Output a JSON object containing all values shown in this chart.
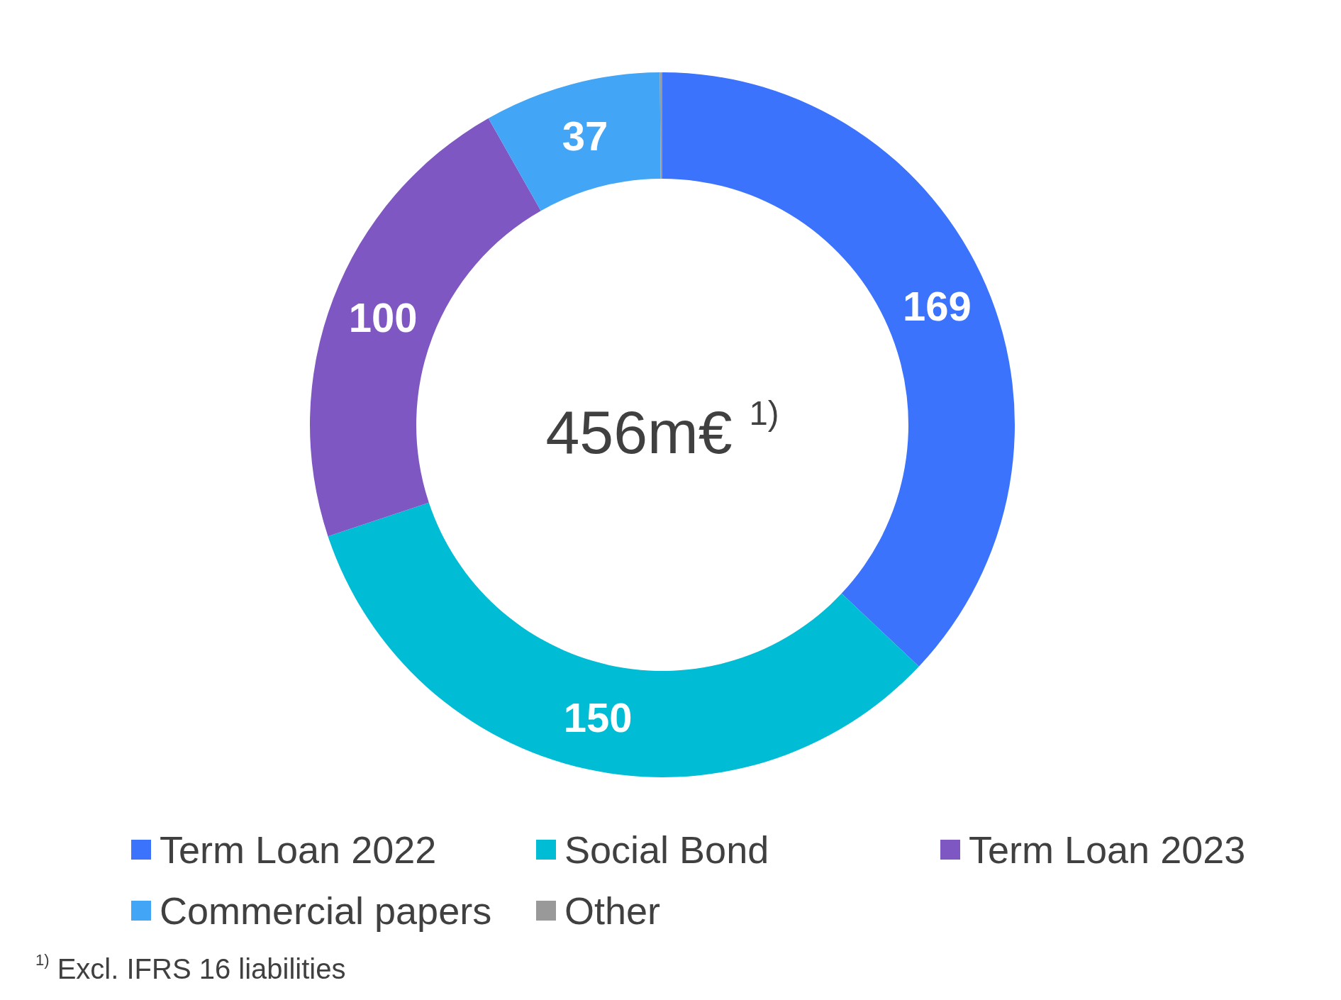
{
  "chart_data": {
    "type": "donut",
    "categories": [
      "Term Loan 2022",
      "Social Bond",
      "Term Loan 2023",
      "Commercial papers",
      "Other"
    ],
    "values": [
      169,
      150,
      100,
      37,
      0.5
    ],
    "colors": [
      "#3b73fd",
      "#00bcd4",
      "#7e57c2",
      "#42a5f5",
      "#999999"
    ],
    "value_labels": [
      "169",
      "150",
      "100",
      "37",
      null
    ],
    "legend": "bottom",
    "annotations": [
      "456m€ $^{1)}$",
      "$^{1)}$ Excl. IFRS 16 liabilities"
    ]
  }
}
